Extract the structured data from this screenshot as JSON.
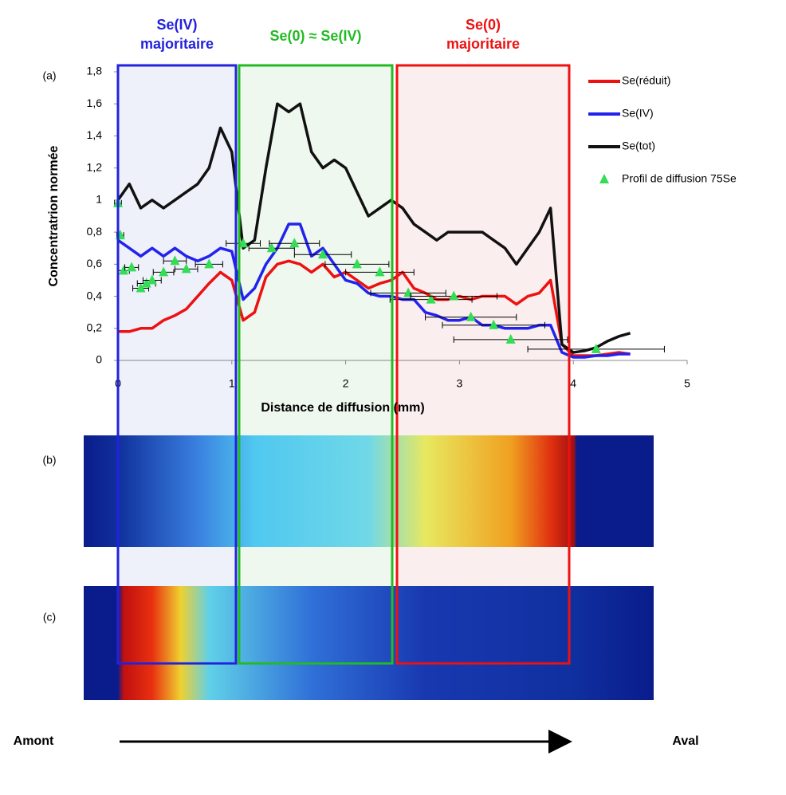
{
  "chart_data": {
    "type": "line",
    "y_label": "Concentratrion normée",
    "x_label": "Distance de diffusion (mm)",
    "xlim": [
      0,
      5
    ],
    "xticks": [
      0,
      1,
      2,
      3,
      4,
      5
    ],
    "ylim": [
      0,
      1.8
    ],
    "yticks": [
      0,
      {
        "value": 0.2,
        "label": "0,2"
      },
      {
        "value": 0.4,
        "label": "0,4"
      },
      {
        "value": 0.6,
        "label": "0,6"
      },
      {
        "value": 0.8,
        "label": "0,8"
      },
      1,
      {
        "value": 1.2,
        "label": "1,2"
      },
      {
        "value": 1.4,
        "label": "1,4"
      },
      {
        "value": 1.6,
        "label": "1,6"
      },
      {
        "value": 1.8,
        "label": "1,8"
      }
    ],
    "x": [
      0,
      0.1,
      0.2,
      0.3,
      0.4,
      0.5,
      0.6,
      0.7,
      0.8,
      0.9,
      1,
      1.1,
      1.2,
      1.3,
      1.4,
      1.5,
      1.6,
      1.7,
      1.8,
      1.9,
      2,
      2.1,
      2.2,
      2.3,
      2.4,
      2.5,
      2.6,
      2.7,
      2.8,
      2.9,
      3,
      3.1,
      3.2,
      3.3,
      3.4,
      3.5,
      3.6,
      3.7,
      3.8,
      3.9,
      4,
      4.1,
      4.2,
      4.3,
      4.4,
      4.5
    ],
    "series": [
      {
        "name": "Se(réduit)",
        "color": "#ee1111",
        "values": [
          0.18,
          0.18,
          0.2,
          0.2,
          0.25,
          0.28,
          0.32,
          0.4,
          0.48,
          0.55,
          0.5,
          0.25,
          0.3,
          0.52,
          0.6,
          0.62,
          0.6,
          0.55,
          0.6,
          0.52,
          0.55,
          0.5,
          0.45,
          0.48,
          0.5,
          0.55,
          0.45,
          0.42,
          0.38,
          0.38,
          0.4,
          0.38,
          0.4,
          0.4,
          0.4,
          0.35,
          0.4,
          0.42,
          0.5,
          0.1,
          0.03,
          0.03,
          0.03,
          0.04,
          0.05,
          0.04
        ]
      },
      {
        "name": "Se(IV)",
        "color": "#2222ee",
        "values": [
          0.75,
          0.7,
          0.65,
          0.7,
          0.65,
          0.7,
          0.65,
          0.62,
          0.65,
          0.7,
          0.68,
          0.38,
          0.45,
          0.6,
          0.7,
          0.85,
          0.85,
          0.65,
          0.7,
          0.6,
          0.5,
          0.48,
          0.42,
          0.4,
          0.4,
          0.38,
          0.38,
          0.3,
          0.28,
          0.25,
          0.25,
          0.27,
          0.22,
          0.22,
          0.2,
          0.2,
          0.2,
          0.22,
          0.22,
          0.05,
          0.02,
          0.02,
          0.03,
          0.03,
          0.04,
          0.04
        ]
      },
      {
        "name": "Se(tot)",
        "color": "#111111",
        "values": [
          1.0,
          1.1,
          0.95,
          1.0,
          0.95,
          1.0,
          1.05,
          1.1,
          1.2,
          1.45,
          1.3,
          0.7,
          0.75,
          1.2,
          1.6,
          1.55,
          1.6,
          1.3,
          1.2,
          1.25,
          1.2,
          1.05,
          0.9,
          0.95,
          1.0,
          0.95,
          0.85,
          0.8,
          0.75,
          0.8,
          0.8,
          0.8,
          0.8,
          0.75,
          0.7,
          0.6,
          0.7,
          0.8,
          0.95,
          0.1,
          0.05,
          0.06,
          0.08,
          0.12,
          0.15,
          0.17
        ]
      }
    ],
    "scatter_series": {
      "name": "Profil de diffusion 75Se",
      "color": "#33dd55",
      "x": [
        0,
        0.02,
        0.05,
        0.12,
        0.2,
        0.25,
        0.3,
        0.4,
        0.5,
        0.6,
        0.8,
        1.1,
        1.35,
        1.55,
        1.8,
        2.1,
        2.3,
        2.55,
        2.75,
        2.95,
        3.1,
        3.3,
        3.45,
        4.2
      ],
      "values": [
        0.98,
        0.78,
        0.56,
        0.58,
        0.45,
        0.48,
        0.5,
        0.55,
        0.62,
        0.57,
        0.6,
        0.73,
        0.7,
        0.73,
        0.66,
        0.6,
        0.55,
        0.42,
        0.38,
        0.4,
        0.27,
        0.22,
        0.13,
        0.07
      ],
      "x_err": [
        0.03,
        0.03,
        0.05,
        0.06,
        0.07,
        0.08,
        0.08,
        0.09,
        0.1,
        0.1,
        0.12,
        0.15,
        0.2,
        0.22,
        0.25,
        0.28,
        0.3,
        0.33,
        0.36,
        0.38,
        0.4,
        0.45,
        0.5,
        0.6
      ]
    },
    "panel_labels": [
      "(a)",
      "(b)",
      "(c)"
    ],
    "regions": [
      {
        "lines": [
          "Se(IV)",
          "majoritaire"
        ],
        "color": "#2222dd"
      },
      {
        "lines": [
          "Se(0) ≈ Se(IV)"
        ],
        "color": "#22bb22"
      },
      {
        "lines": [
          "Se(0)",
          "majoritaire"
        ],
        "color": "#ee1111"
      }
    ],
    "arrow_labels": [
      "Amont",
      "Aval"
    ]
  }
}
